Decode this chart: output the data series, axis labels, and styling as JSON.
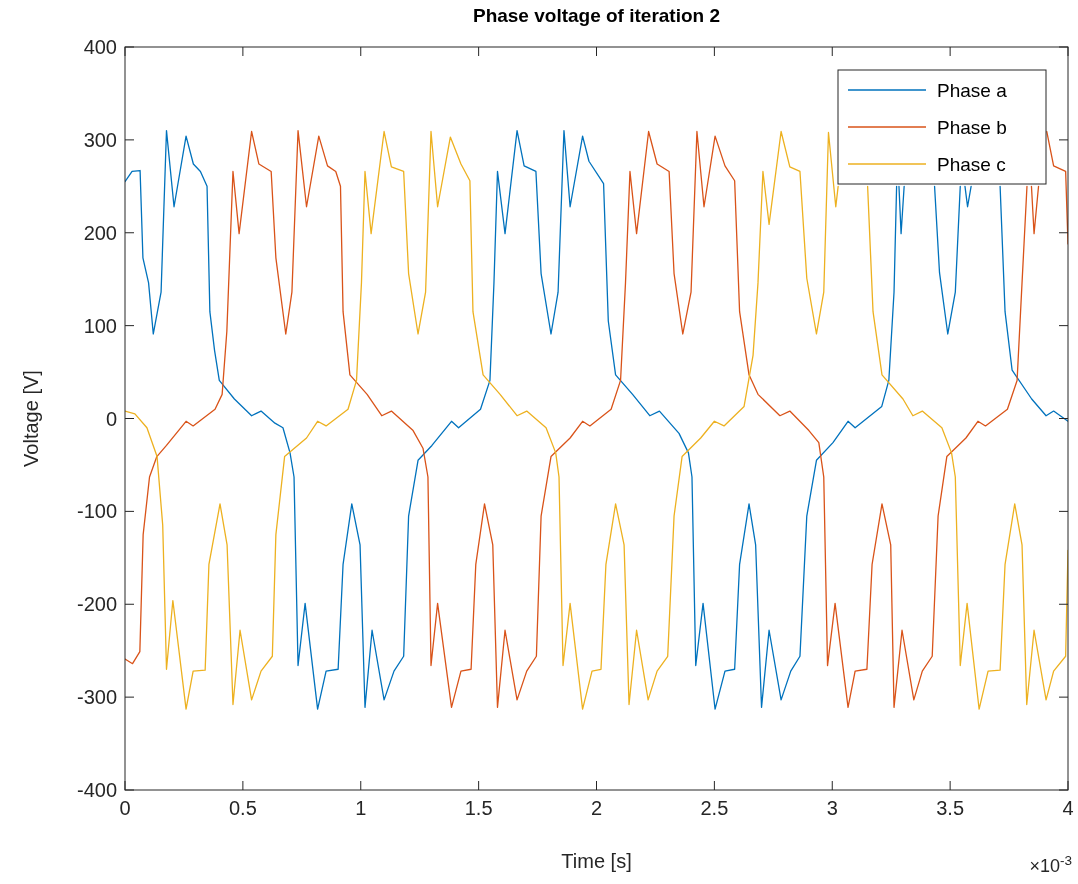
{
  "chart_data": {
    "type": "line",
    "title": "Phase voltage of iteration 2",
    "xlabel": "Time [s]",
    "ylabel": "Voltage [V]",
    "annotations": [
      "×10$^{-3}$"
    ],
    "xlim": [
      0,
      4
    ],
    "xticks": [
      0,
      0.5,
      1,
      1.5,
      2,
      2.5,
      3,
      3.5,
      4
    ],
    "ylim": [
      -400,
      400
    ],
    "yticks": [
      -400,
      -300,
      -200,
      -100,
      0,
      100,
      200,
      300,
      400
    ],
    "grid": false,
    "legend": "top right",
    "marker": "none",
    "line_style": "solid",
    "series": [
      {
        "name": "Phase a",
        "color": "#0072bd",
        "x": [
          0,
          0.03,
          0.064,
          0.076,
          0.1,
          0.12,
          0.153,
          0.176,
          0.208,
          0.259,
          0.29,
          0.32,
          0.348,
          0.36,
          0.38,
          0.4,
          0.464,
          0.537,
          0.577,
          0.636,
          0.67,
          0.7,
          0.717,
          0.734,
          0.764,
          0.817,
          0.853,
          0.904,
          0.925,
          0.962,
          0.997,
          1.018,
          1.048,
          1.099,
          1.141,
          1.182,
          1.203,
          1.243,
          1.302,
          1.385,
          1.415,
          1.508,
          1.548,
          1.565,
          1.58,
          1.612,
          1.663,
          1.693,
          1.743,
          1.765,
          1.807,
          1.837,
          1.862,
          1.888,
          1.941,
          1.968,
          2.03,
          2.05,
          2.081,
          2.153,
          2.226,
          2.267,
          2.35,
          2.39,
          2.405,
          2.421,
          2.452,
          2.503,
          2.545,
          2.586,
          2.607,
          2.647,
          2.675,
          2.7,
          2.732,
          2.783,
          2.824,
          2.863,
          2.892,
          2.933,
          3.003,
          3.067,
          3.097,
          3.21,
          3.24,
          3.262,
          3.273,
          3.276,
          3.283,
          3.292,
          3.305,
          3.31,
          3.434,
          3.455,
          3.49,
          3.522,
          3.543,
          3.553,
          3.563,
          3.574,
          3.589,
          3.6,
          3.712,
          3.733,
          3.763,
          3.846,
          3.907,
          3.939,
          4
        ],
        "values": [
          255,
          266,
          267,
          173,
          146,
          91,
          136,
          310,
          228,
          304,
          274,
          266,
          250,
          115,
          73,
          41,
          21,
          3,
          8,
          -5,
          -10,
          -37,
          -63,
          -266,
          -199,
          -313,
          -272,
          -270,
          -157,
          -92,
          -136,
          -311,
          -228,
          -303,
          -272,
          -256,
          -105,
          -45,
          -29,
          -3,
          -10,
          10,
          41,
          146,
          266,
          199,
          310,
          272,
          266,
          156,
          91,
          136,
          310,
          228,
          304,
          277,
          253,
          105,
          47,
          26,
          3,
          8,
          -16,
          -37,
          -63,
          -266,
          -199,
          -313,
          -272,
          -270,
          -157,
          -92,
          -136,
          -311,
          -228,
          -303,
          -272,
          -256,
          -105,
          -45,
          -26,
          -3,
          -10,
          13,
          41,
          136,
          250,
          null,
          250,
          199,
          250,
          null,
          250,
          157,
          91,
          136,
          250,
          null,
          250,
          228,
          250,
          null,
          250,
          115,
          52,
          21,
          3,
          8,
          -3
        ]
      },
      {
        "name": "Phase b",
        "color": "#d95319",
        "x": [
          0,
          0.032,
          0.063,
          0.077,
          0.104,
          0.135,
          0.176,
          0.259,
          0.289,
          0.382,
          0.412,
          0.432,
          0.458,
          0.484,
          0.537,
          0.568,
          0.62,
          0.64,
          0.682,
          0.708,
          0.734,
          0.77,
          0.822,
          0.859,
          0.894,
          0.914,
          0.925,
          0.954,
          1.027,
          1.089,
          1.13,
          1.222,
          1.264,
          1.285,
          1.298,
          1.326,
          1.385,
          1.425,
          1.468,
          1.488,
          1.525,
          1.56,
          1.58,
          1.612,
          1.663,
          1.704,
          1.745,
          1.765,
          1.807,
          1.888,
          1.941,
          1.972,
          2.062,
          2.102,
          2.123,
          2.142,
          2.17,
          2.221,
          2.257,
          2.308,
          2.329,
          2.366,
          2.401,
          2.426,
          2.456,
          2.503,
          2.545,
          2.586,
          2.607,
          2.647,
          2.685,
          2.778,
          2.82,
          2.901,
          2.943,
          2.964,
          2.98,
          3.012,
          3.067,
          3.097,
          3.147,
          3.169,
          3.211,
          3.248,
          3.262,
          3.296,
          3.346,
          3.382,
          3.424,
          3.449,
          3.486,
          3.567,
          3.618,
          3.65,
          3.743,
          3.784,
          3.805,
          3.826,
          3.828,
          3.845,
          3.856,
          3.875,
          3.88,
          3.91,
          3.939,
          3.99,
          4
        ],
        "values": [
          -259,
          -264,
          -251,
          -125,
          -63,
          -41,
          -29,
          -3,
          -8,
          10,
          26,
          94,
          266,
          199,
          309,
          274,
          266,
          173,
          91,
          136,
          310,
          228,
          304,
          272,
          266,
          250,
          115,
          47,
          26,
          3,
          8,
          -13,
          -32,
          -63,
          -266,
          -199,
          -311,
          -272,
          -270,
          -157,
          -92,
          -136,
          -311,
          -228,
          -303,
          -272,
          -256,
          -105,
          -41,
          -21,
          -3,
          -8,
          10,
          41,
          146,
          266,
          199,
          309,
          274,
          266,
          156,
          91,
          136,
          309,
          228,
          304,
          272,
          256,
          115,
          47,
          26,
          3,
          8,
          -13,
          -26,
          -63,
          -266,
          -199,
          -311,
          -272,
          -270,
          -157,
          -92,
          -136,
          -311,
          -228,
          -303,
          -272,
          -256,
          -105,
          -41,
          -21,
          -3,
          -8,
          10,
          41,
          146,
          250,
          null,
          250,
          199,
          250,
          null,
          309,
          272,
          266,
          188
        ]
      },
      {
        "name": "Phase c",
        "color": "#edb120",
        "x": [
          0,
          0.042,
          0.093,
          0.136,
          0.16,
          0.176,
          0.203,
          0.259,
          0.289,
          0.34,
          0.356,
          0.403,
          0.433,
          0.458,
          0.488,
          0.537,
          0.577,
          0.625,
          0.64,
          0.677,
          0.77,
          0.817,
          0.853,
          0.946,
          0.982,
          1.003,
          1.018,
          1.044,
          1.099,
          1.13,
          1.182,
          1.203,
          1.243,
          1.275,
          1.298,
          1.326,
          1.38,
          1.425,
          1.463,
          1.476,
          1.519,
          1.591,
          1.663,
          1.704,
          1.786,
          1.827,
          1.841,
          1.858,
          1.888,
          1.941,
          1.981,
          2.019,
          2.04,
          2.081,
          2.117,
          2.138,
          2.17,
          2.219,
          2.257,
          2.302,
          2.329,
          2.363,
          2.442,
          2.5,
          2.541,
          2.626,
          2.664,
          2.685,
          2.706,
          2.732,
          2.783,
          2.82,
          2.863,
          2.892,
          2.933,
          2.964,
          2.984,
          3.015,
          3.025,
          3.03,
          3.15,
          3.173,
          3.211,
          3.3,
          3.342,
          3.382,
          3.465,
          3.506,
          3.522,
          3.543,
          3.572,
          3.623,
          3.661,
          3.712,
          3.733,
          3.774,
          3.805,
          3.825,
          3.856,
          3.907,
          3.939,
          3.99,
          4
        ],
        "values": [
          8,
          5,
          -10,
          -41,
          -115,
          -270,
          -196,
          -313,
          -272,
          -271,
          -157,
          -92,
          -136,
          -308,
          -228,
          -303,
          -272,
          -256,
          -125,
          -41,
          -21,
          -3,
          -8,
          10,
          41,
          146,
          266,
          199,
          309,
          271,
          266,
          156,
          91,
          136,
          309,
          228,
          303,
          274,
          256,
          115,
          47,
          26,
          3,
          8,
          -10,
          -37,
          -63,
          -266,
          -199,
          -313,
          -272,
          -270,
          -157,
          -92,
          -136,
          -308,
          -228,
          -303,
          -272,
          -256,
          -105,
          -41,
          -21,
          -3,
          -8,
          13,
          68,
          146,
          266,
          209,
          309,
          271,
          266,
          151,
          91,
          136,
          308,
          228,
          250,
          null,
          250,
          115,
          47,
          21,
          3,
          8,
          -10,
          -37,
          -63,
          -266,
          -199,
          -313,
          -272,
          -271,
          -157,
          -92,
          -136,
          -308,
          -228,
          -303,
          -272,
          -256,
          -142
        ]
      }
    ]
  }
}
